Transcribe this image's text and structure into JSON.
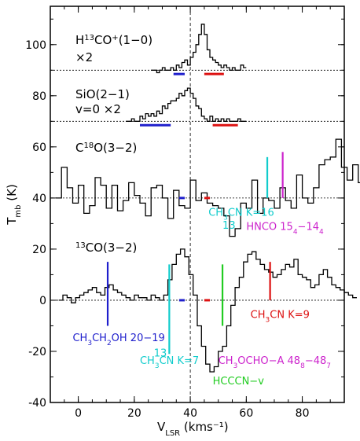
{
  "chart_data": {
    "type": "line",
    "title": "",
    "xlabel": "V",
    "xlabel_sub": "LSR",
    "xlabel_unit": "(kms⁻¹)",
    "ylabel": "T",
    "ylabel_sub": "mb",
    "ylabel_unit": "(K)",
    "xlim": [
      -10,
      95
    ],
    "ylim": [
      -40,
      115
    ],
    "x_ticks": [
      0,
      20,
      40,
      60,
      80
    ],
    "x_tick_labels": [
      "0",
      "20",
      "40",
      "60",
      "80"
    ],
    "y_ticks": [
      -40,
      -20,
      0,
      20,
      40,
      60,
      80,
      100
    ],
    "y_tick_labels": [
      "-40",
      "-20",
      "0",
      "20",
      "40",
      "60",
      "80",
      "100"
    ],
    "vertical_reference_x": 40,
    "spectra": [
      {
        "label": "H¹³CO⁺(1−0)",
        "label_main": "H",
        "label_sup": "13",
        "label_mid": "CO",
        "label_sup2": "+",
        "label_end": "(1−0)",
        "scale_note": "×2",
        "baseline": 90,
        "x_start": 26,
        "x_step": 1,
        "y": [
          90,
          90,
          89,
          90,
          91,
          90,
          90,
          91,
          90,
          92,
          91,
          93,
          94,
          92,
          95,
          97,
          100,
          104,
          108,
          104,
          98,
          95,
          94,
          93,
          92,
          91,
          92,
          91,
          90,
          91,
          90,
          90,
          92,
          91
        ]
      },
      {
        "label": "SiO(2−1)",
        "label_main": "SiO(2−1)",
        "scale_note": "v=0 ×2",
        "baseline": 70,
        "x_start": 17,
        "x_step": 1,
        "y": [
          70,
          70,
          71,
          70,
          70,
          72,
          71,
          73,
          72,
          73,
          72,
          74,
          73,
          76,
          75,
          77,
          78,
          78,
          79,
          81,
          80,
          82,
          83,
          81,
          79,
          76,
          75,
          72,
          71,
          70,
          72,
          70,
          71,
          70,
          71,
          70,
          71,
          70,
          70,
          70,
          71,
          70,
          70
        ]
      },
      {
        "label": "C¹⁸O(3−2)",
        "label_main": "C",
        "label_sup": "18",
        "label_end": "O(3−2)",
        "baseline": 40,
        "x_start": -8,
        "x_step": 2,
        "y": [
          40,
          52,
          44,
          38,
          45,
          34,
          37,
          48,
          45,
          36,
          45,
          35,
          39,
          46,
          41,
          38,
          33,
          44,
          45,
          40,
          32,
          43,
          37,
          36,
          47,
          39,
          42,
          38,
          37,
          36,
          33,
          25,
          28,
          38,
          36,
          47,
          34,
          40,
          39,
          36,
          44,
          39,
          36,
          49,
          40,
          38,
          44,
          53,
          55,
          56,
          63,
          52,
          47,
          53,
          46,
          44,
          42,
          46,
          43,
          47
        ]
      },
      {
        "label": "¹³CO(3−2)",
        "label_sup": "13",
        "label_end": "CO(3−2)",
        "baseline": 0,
        "x_start": -7,
        "x_step": 1.5,
        "y": [
          0,
          2,
          1,
          -1,
          1,
          2,
          3,
          4,
          5,
          3,
          2,
          5,
          6,
          4,
          3,
          2,
          1,
          0,
          2,
          1,
          1,
          0,
          2,
          1,
          0,
          2,
          8,
          14,
          18,
          20,
          17,
          10,
          2,
          -10,
          -18,
          -25,
          -28,
          -26,
          -20,
          -18,
          -10,
          -2,
          5,
          9,
          15,
          18,
          19,
          16,
          14,
          12,
          11,
          9,
          10,
          12,
          14,
          13,
          16,
          10,
          9,
          8,
          5,
          6,
          10,
          12,
          9,
          6,
          5,
          4,
          3,
          2,
          1
        ]
      }
    ],
    "velocity_bars": [
      {
        "x1": 34,
        "x2": 38,
        "y": 88.5,
        "color": "#1f1fcc"
      },
      {
        "x1": 45,
        "x2": 52,
        "y": 88.5,
        "color": "#dd1111"
      },
      {
        "x1": 22,
        "x2": 33,
        "y": 68.5,
        "color": "#1f1fcc"
      },
      {
        "x1": 48,
        "x2": 57,
        "y": 68.5,
        "color": "#dd1111"
      },
      {
        "x1": 36,
        "x2": 38,
        "y": 40,
        "color": "#1f1fcc"
      },
      {
        "x1": 45,
        "x2": 47,
        "y": 40,
        "color": "#dd1111"
      },
      {
        "x1": 36,
        "x2": 38,
        "y": 0,
        "color": "#1f1fcc"
      },
      {
        "x1": 45,
        "x2": 47,
        "y": 0,
        "color": "#dd1111"
      }
    ],
    "line_ids": [
      {
        "x": 10.5,
        "y_top": 15,
        "y_bottom": -10,
        "color": "#1f1fcc"
      },
      {
        "x": 32.5,
        "y_top": 14,
        "y_bottom": -21,
        "color": "#11cccc"
      },
      {
        "x": 51.5,
        "y_top": 14,
        "y_bottom": -10,
        "color": "#22cc22"
      },
      {
        "x": 68.5,
        "y_top": 15,
        "y_bottom": 0,
        "color": "#dd1111"
      },
      {
        "x": 67.5,
        "y_top": 56,
        "y_bottom": 40,
        "color": "#11cccc"
      },
      {
        "x": 73.0,
        "y_top": 58,
        "y_bottom": 40,
        "color": "#cc22cc"
      }
    ],
    "line_labels": [
      {
        "text_parts": [
          "CH",
          {
            "sub": "3"
          },
          "CN K=16"
        ],
        "x": 46.5,
        "y": 33,
        "color": "#11cccc"
      },
      {
        "text_parts": [
          "HNCO 15",
          {
            "sub": "4"
          },
          "−14",
          {
            "sub": "4"
          }
        ],
        "x": 60,
        "y": 27.5,
        "color": "#cc22cc"
      },
      {
        "text_parts": [
          "CH",
          {
            "sub": "3"
          },
          "CN K=9"
        ],
        "x": 61.5,
        "y": -7,
        "color": "#dd1111"
      },
      {
        "text_parts": [
          "CH",
          {
            "sub": "3"
          },
          "CH",
          {
            "sub": "2"
          },
          "OH 20−19"
        ],
        "x": -2,
        "y": -16,
        "color": "#1f1fcc"
      },
      {
        "text_parts": [
          "CH",
          {
            "sub": "3"
          },
          "CN K=7"
        ],
        "x": 22,
        "y": -25,
        "color": "#11cccc"
      },
      {
        "text_parts": [
          "CH",
          {
            "sub": "3"
          },
          "OCHO−A 48",
          {
            "sub": "8"
          },
          "−48",
          {
            "sub": "7"
          }
        ],
        "x": 50,
        "y": -25,
        "color": "#cc22cc"
      },
      {
        "text_parts": [
          "HCCCN−v"
        ],
        "x": 48,
        "y": -33,
        "color": "#22cc22"
      }
    ],
    "label_13": {
      "ch3_k16_sup": "13",
      "ch3_k7_sup": "13"
    }
  }
}
